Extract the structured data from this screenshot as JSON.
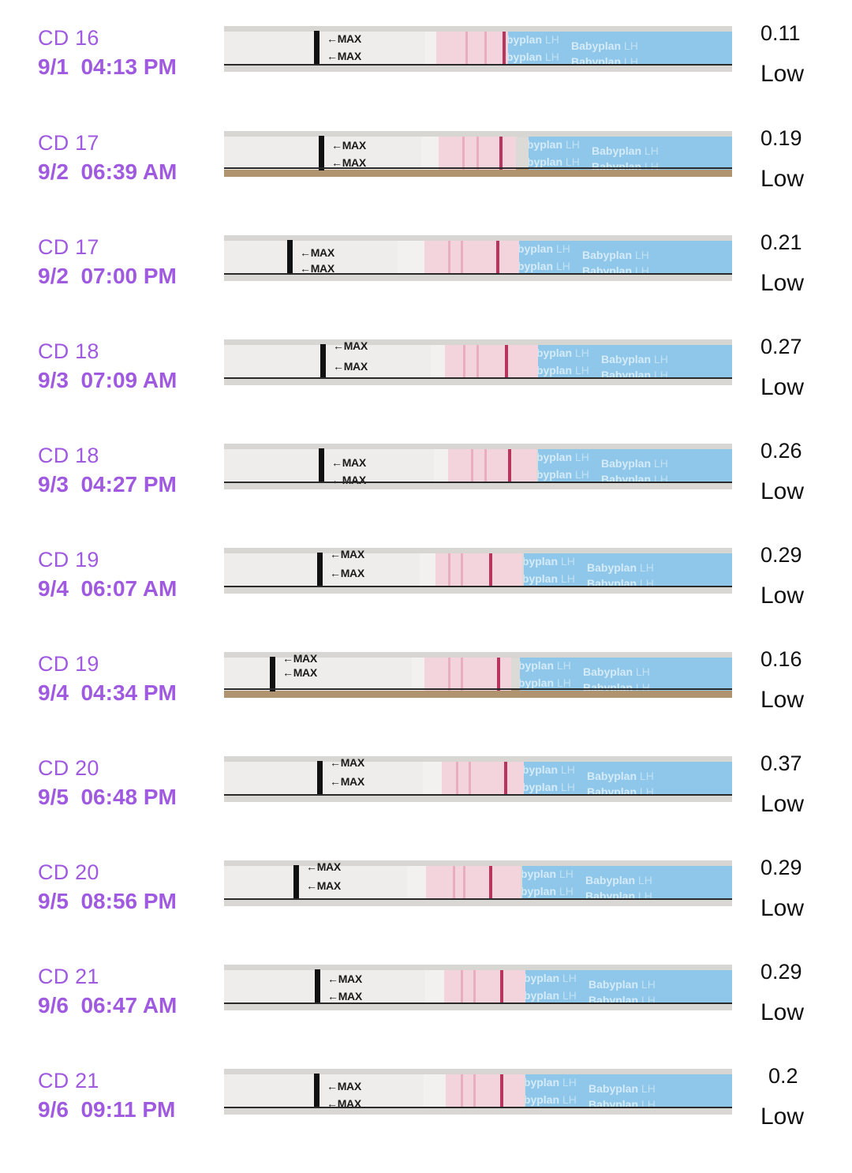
{
  "colors": {
    "accent_purple": "#a05ae0",
    "result_text": "#111111",
    "strip_window_pink": "#f3d4dc",
    "strip_test_line": "#b8355e",
    "strip_wrapper_blue": "#8fc7ea"
  },
  "strip": {
    "max_label": "←MAX",
    "brand_text": "Babyplan",
    "brand_suffix": "LH"
  },
  "entries": [
    {
      "cycle_day": "CD 16",
      "date": "9/1",
      "time": "04:13 PM",
      "datetime": "9/1  04:13 PM",
      "value": "0.11",
      "level": "Low"
    },
    {
      "cycle_day": "CD 17",
      "date": "9/2",
      "time": "06:39 AM",
      "datetime": "9/2  06:39 AM",
      "value": "0.19",
      "level": "Low"
    },
    {
      "cycle_day": "CD 17",
      "date": "9/2",
      "time": "07:00 PM",
      "datetime": "9/2  07:00 PM",
      "value": "0.21",
      "level": "Low"
    },
    {
      "cycle_day": "CD 18",
      "date": "9/3",
      "time": "07:09 AM",
      "datetime": "9/3  07:09 AM",
      "value": "0.27",
      "level": "Low"
    },
    {
      "cycle_day": "CD 18",
      "date": "9/3",
      "time": "04:27 PM",
      "datetime": "9/3  04:27 PM",
      "value": "0.26",
      "level": "Low"
    },
    {
      "cycle_day": "CD 19",
      "date": "9/4",
      "time": "06:07 AM",
      "datetime": "9/4  06:07 AM",
      "value": "0.29",
      "level": "Low"
    },
    {
      "cycle_day": "CD 19",
      "date": "9/4",
      "time": "04:34 PM",
      "datetime": "9/4  04:34 PM",
      "value": "0.16",
      "level": "Low"
    },
    {
      "cycle_day": "CD 20",
      "date": "9/5",
      "time": "06:48 PM",
      "datetime": "9/5  06:48 PM",
      "value": "0.37",
      "level": "Low"
    },
    {
      "cycle_day": "CD 20",
      "date": "9/5",
      "time": "08:56 PM",
      "datetime": "9/5  08:56 PM",
      "value": "0.29",
      "level": "Low"
    },
    {
      "cycle_day": "CD 21",
      "date": "9/6",
      "time": "06:47 AM",
      "datetime": "9/6  06:47 AM",
      "value": "0.29",
      "level": "Low"
    },
    {
      "cycle_day": "CD 21",
      "date": "9/6",
      "time": "09:11 PM",
      "datetime": "9/6  09:11 PM",
      "value": "0.2",
      "level": "Low"
    }
  ]
}
